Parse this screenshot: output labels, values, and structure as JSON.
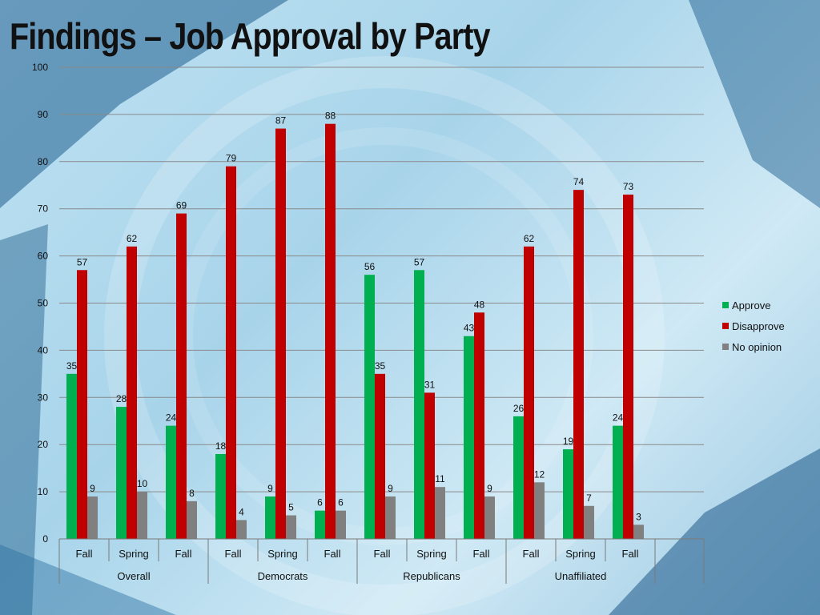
{
  "title": "Findings – Job Approval by Party",
  "colors": {
    "approve": "#00b050",
    "disapprove": "#c00000",
    "no_opinion": "#808080",
    "grid": "#8a8a8a"
  },
  "chart_data": {
    "type": "bar",
    "title": "Findings – Job Approval by Party",
    "xlabel": "",
    "ylabel": "",
    "ylim": [
      0,
      100
    ],
    "yticks": [
      "0",
      "10",
      "20",
      "30",
      "40",
      "50",
      "60",
      "70",
      "80",
      "90",
      "100"
    ],
    "grid": true,
    "legend_position": "right",
    "categories": [
      "Fall",
      "Spring",
      "Fall",
      "Fall",
      "Spring",
      "Fall",
      "Fall",
      "Spring",
      "Fall",
      "Fall",
      "Spring",
      "Fall"
    ],
    "groups": [
      {
        "label": "Overall",
        "count": 3
      },
      {
        "label": "Democrats",
        "count": 3
      },
      {
        "label": "Republicans",
        "count": 3
      },
      {
        "label": "Unaffiliated",
        "count": 3
      }
    ],
    "series": [
      {
        "name": "Approve",
        "values": [
          35,
          28,
          24,
          18,
          9,
          6,
          56,
          57,
          43,
          26,
          19,
          24
        ]
      },
      {
        "name": "Disapprove",
        "values": [
          57,
          62,
          69,
          79,
          87,
          88,
          35,
          31,
          48,
          62,
          74,
          73
        ]
      },
      {
        "name": "No opinion",
        "values": [
          9,
          10,
          8,
          4,
          5,
          6,
          9,
          11,
          9,
          12,
          7,
          3
        ]
      }
    ]
  }
}
